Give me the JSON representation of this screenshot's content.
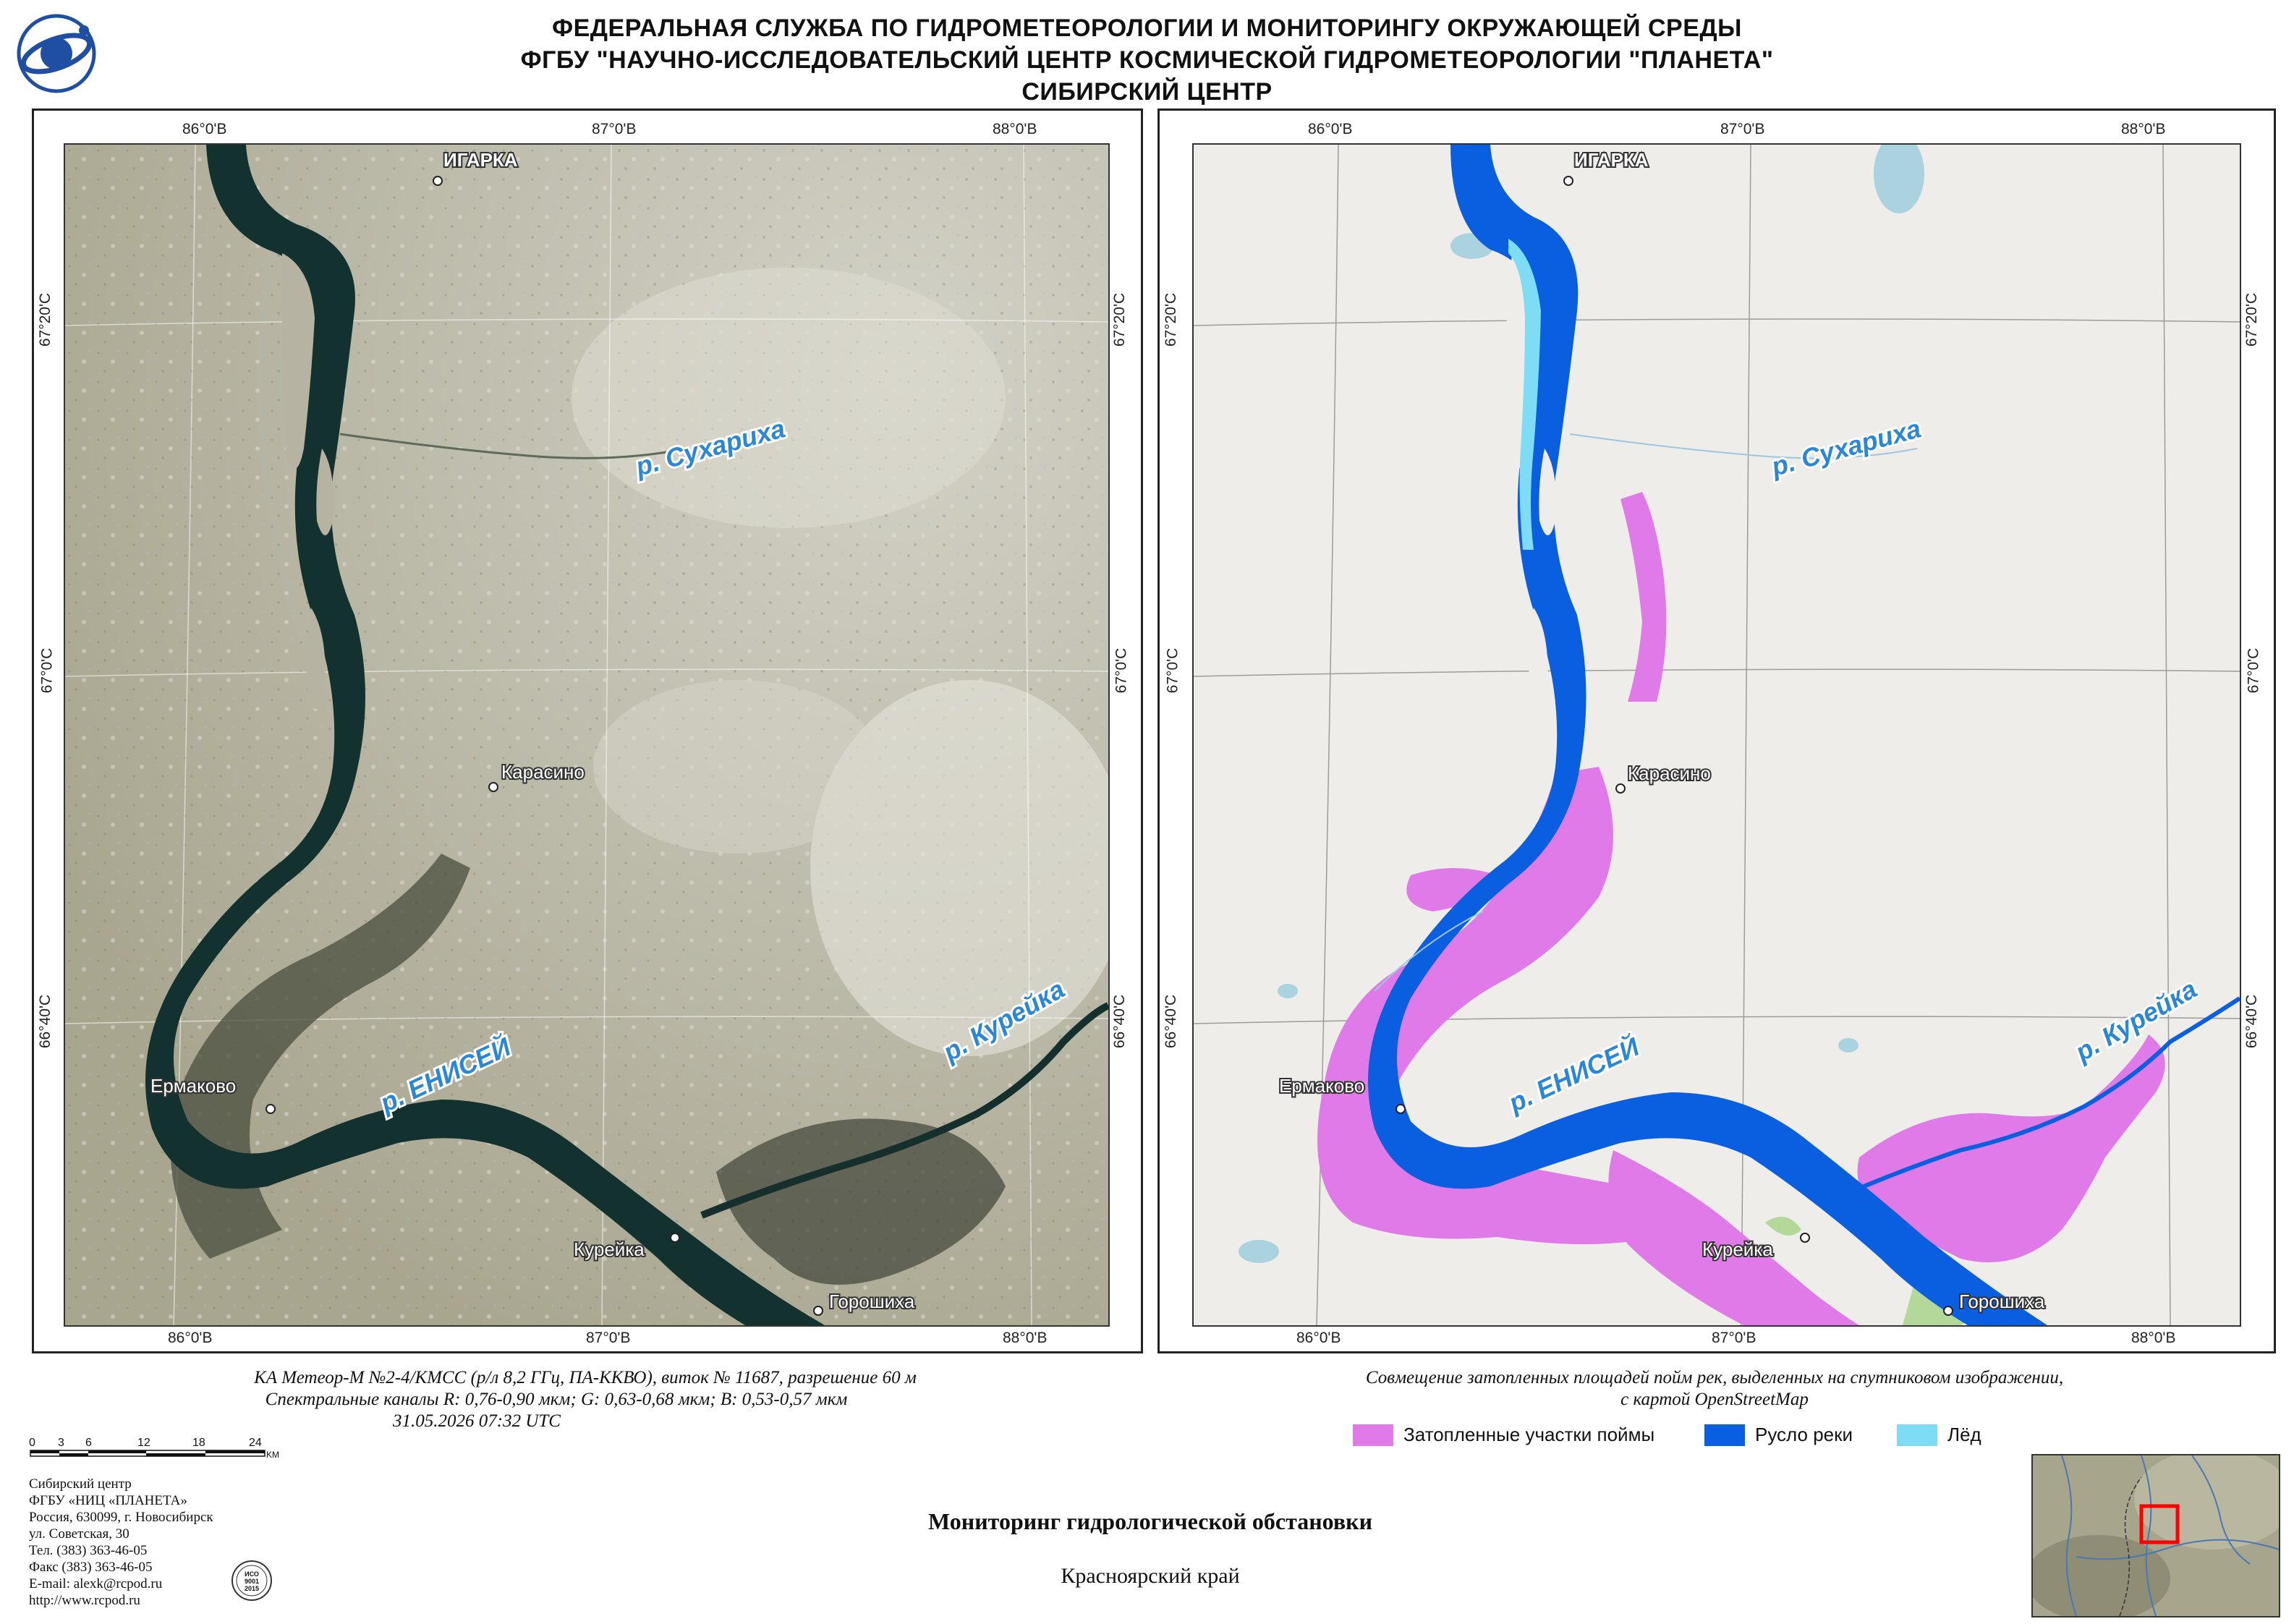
{
  "header": {
    "line1": "ФЕДЕРАЛЬНАЯ СЛУЖБА ПО ГИДРОМЕТЕОРОЛОГИИ И МОНИТОРИНГУ ОКРУЖАЮЩЕЙ СРЕДЫ",
    "line2": "ФГБУ \"НАУЧНО-ИССЛЕДОВАТЕЛЬСКИЙ ЦЕНТР КОСМИЧЕСКОЙ ГИДРОМЕТЕОРОЛОГИИ \"ПЛАНЕТА\"",
    "line3": "СИБИРСКИЙ ЦЕНТР"
  },
  "coords": {
    "lon": [
      "86°0'В",
      "87°0'В",
      "88°0'В"
    ],
    "lat": [
      "67°20'С",
      "67°0'С",
      "66°40'С"
    ]
  },
  "places": {
    "igarka": "ИГАРКА",
    "karasino": "Карасино",
    "ermakovo": "Ермаково",
    "kureika_town": "Курейка",
    "goroshikha": "Горошиха"
  },
  "rivers": {
    "enisei": "р. ЕНИСЕЙ",
    "sukharikha": "р. Сухариха",
    "kureika": "р. Курейка"
  },
  "caption_left": {
    "line1": "КА Метеор-М №2-4/КМСС (р/л 8,2 ГГц, ПА-ККВО), виток № 11687, разрешение 60 м",
    "line2": "Спектральные каналы R: 0,76-0,90 мкм; G: 0,63-0,68 мкм; B: 0,53-0,57 мкм",
    "line3": "31.05.2026  07:32 UTC"
  },
  "caption_right": {
    "line1": "Совмещение затопленных площадей пойм рек, выделенных на спутниковом изображении,",
    "line2": "с картой OpenStreetMap"
  },
  "legend": [
    {
      "label": "Затопленные участки поймы",
      "color": "#e07ae8"
    },
    {
      "label": "Русло реки",
      "color": "#0a5ee0"
    },
    {
      "label": "Лёд",
      "color": "#7fdcf5"
    }
  ],
  "scale": {
    "ticks": [
      "0",
      "3",
      "6",
      "12",
      "18",
      "24"
    ],
    "unit": "KM"
  },
  "org": {
    "lines": [
      "Сибирский центр",
      "ФГБУ «НИЦ «ПЛАНЕТА»",
      "Россия, 630099, г. Новосибирск",
      "ул. Советская, 30",
      "Тел. (383) 363-46-05",
      "Факс (383) 363-46-05",
      "E-mail: alexk@rcpod.ru",
      "http://www.rcpod.ru"
    ]
  },
  "iso_badge": {
    "line1": "ИСО",
    "line2": "9001",
    "line3": "2015"
  },
  "footer": {
    "title": "Мониторинг гидрологической обстановки",
    "region": "Красноярский край"
  },
  "colors": {
    "flood": "#e07ae8",
    "river": "#0a5ee0",
    "ice": "#7fdcf5",
    "osm_bg": "#efedea",
    "sat_bg": "#b9b6a8",
    "label_blue": "#2a86d6",
    "inset_marker": "#ff0000"
  }
}
